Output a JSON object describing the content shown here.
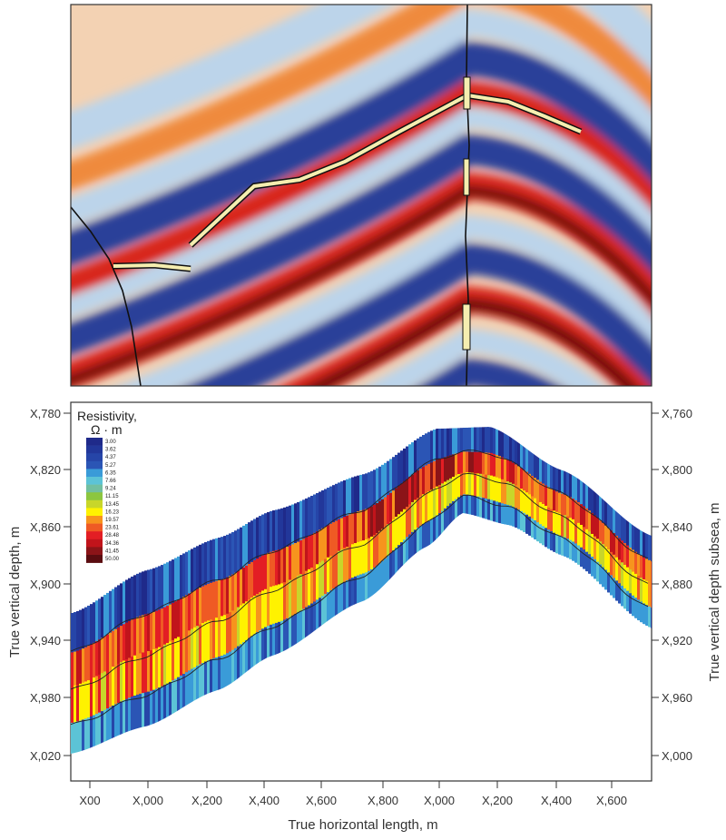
{
  "chart_data": [
    {
      "type": "heatmap",
      "panel": "seismic-section",
      "title": "",
      "palette": {
        "blue": "#2a3f99",
        "light_blue": "#bcd4ea",
        "light_orange": "#f6c9a0",
        "orange": "#ef8a3c",
        "red": "#d8281e",
        "dark_red": "#6d0a0c",
        "horizon_highlight": "#f5eeb0"
      }
    },
    {
      "type": "heatmap",
      "panel": "resistivity-section",
      "colorbar": {
        "title": "Resistivity,",
        "unit": "Ω · m",
        "labels": [
          "3.00",
          "3.62",
          "4.37",
          "5.27",
          "6.35",
          "7.66",
          "9.24",
          "11.15",
          "13.45",
          "16.23",
          "19.57",
          "23.61",
          "28.48",
          "34.36",
          "41.45",
          "50.00"
        ],
        "colors": [
          "#1f2a8a",
          "#22379a",
          "#2645a8",
          "#2b55b5",
          "#3a9bd8",
          "#5cc3d6",
          "#72bfa0",
          "#8cc63f",
          "#c8d62a",
          "#fff200",
          "#f7941d",
          "#ef5a24",
          "#e31e24",
          "#c1141b",
          "#8b1418",
          "#5a0c10"
        ]
      },
      "xlabel": "True horizontal length, m",
      "ylabel_left": "True vertical depth, m",
      "ylabel_right": "True vertical depth subsea, m",
      "x_ticks": [
        "X00",
        "X,000",
        "X,200",
        "X,400",
        "X,600",
        "X,800",
        "X,000",
        "X,200",
        "X,400",
        "X,600"
      ],
      "y_ticks_left": [
        "X,780",
        "X,820",
        "X,860",
        "X,900",
        "X,940",
        "X,980",
        "X,020"
      ],
      "y_ticks_right": [
        "X,760",
        "X,800",
        "X,840",
        "X,880",
        "X,920",
        "X,960",
        "X,000"
      ],
      "grid": false
    }
  ]
}
